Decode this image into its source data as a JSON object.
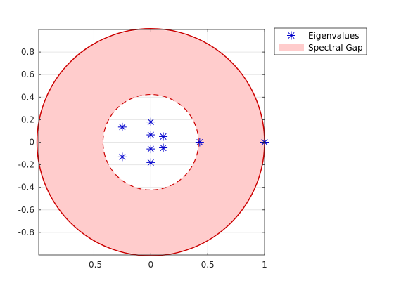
{
  "chart_data": {
    "type": "scatter",
    "title": "",
    "xlabel": "",
    "ylabel": "",
    "xlim": [
      -0.985,
      1.0
    ],
    "ylim": [
      -1.0,
      1.0
    ],
    "grid": true,
    "legend_placement": "outside top-right",
    "x_ticks": [
      -0.5,
      0,
      0.5,
      1
    ],
    "x_tick_labels": [
      "-0.5",
      "0",
      "0.5",
      "1"
    ],
    "y_ticks": [
      -0.8,
      -0.6,
      -0.4,
      -0.2,
      0,
      0.2,
      0.4,
      0.6,
      0.8
    ],
    "y_tick_labels": [
      "-0.8",
      "-0.6",
      "-0.4",
      "-0.2",
      "0",
      "0.2",
      "0.4",
      "0.6",
      "0.8"
    ],
    "unit_circle_radius": 1.0,
    "gap_inner_radius": 0.42,
    "colors": {
      "eigenvalue": "#0000cc",
      "gap_fill": "#ffcccc",
      "circle": "#cc0000",
      "grid": "#e6e6e6",
      "axis": "#262626"
    },
    "series": [
      {
        "name": "Eigenvalues",
        "marker": "asterisk",
        "points": [
          {
            "x": 1.0,
            "y": 0.0
          },
          {
            "x": 1.0,
            "y": 0.0
          },
          {
            "x": 0.43,
            "y": 0.0
          },
          {
            "x": -0.25,
            "y": 0.135
          },
          {
            "x": -0.25,
            "y": -0.13
          },
          {
            "x": 0.0,
            "y": 0.18
          },
          {
            "x": 0.0,
            "y": -0.18
          },
          {
            "x": 0.0,
            "y": 0.065
          },
          {
            "x": 0.0,
            "y": -0.06
          },
          {
            "x": 0.11,
            "y": 0.05
          },
          {
            "x": 0.11,
            "y": -0.05
          }
        ]
      },
      {
        "name": "Spectral Gap",
        "shape": "annulus"
      }
    ]
  }
}
